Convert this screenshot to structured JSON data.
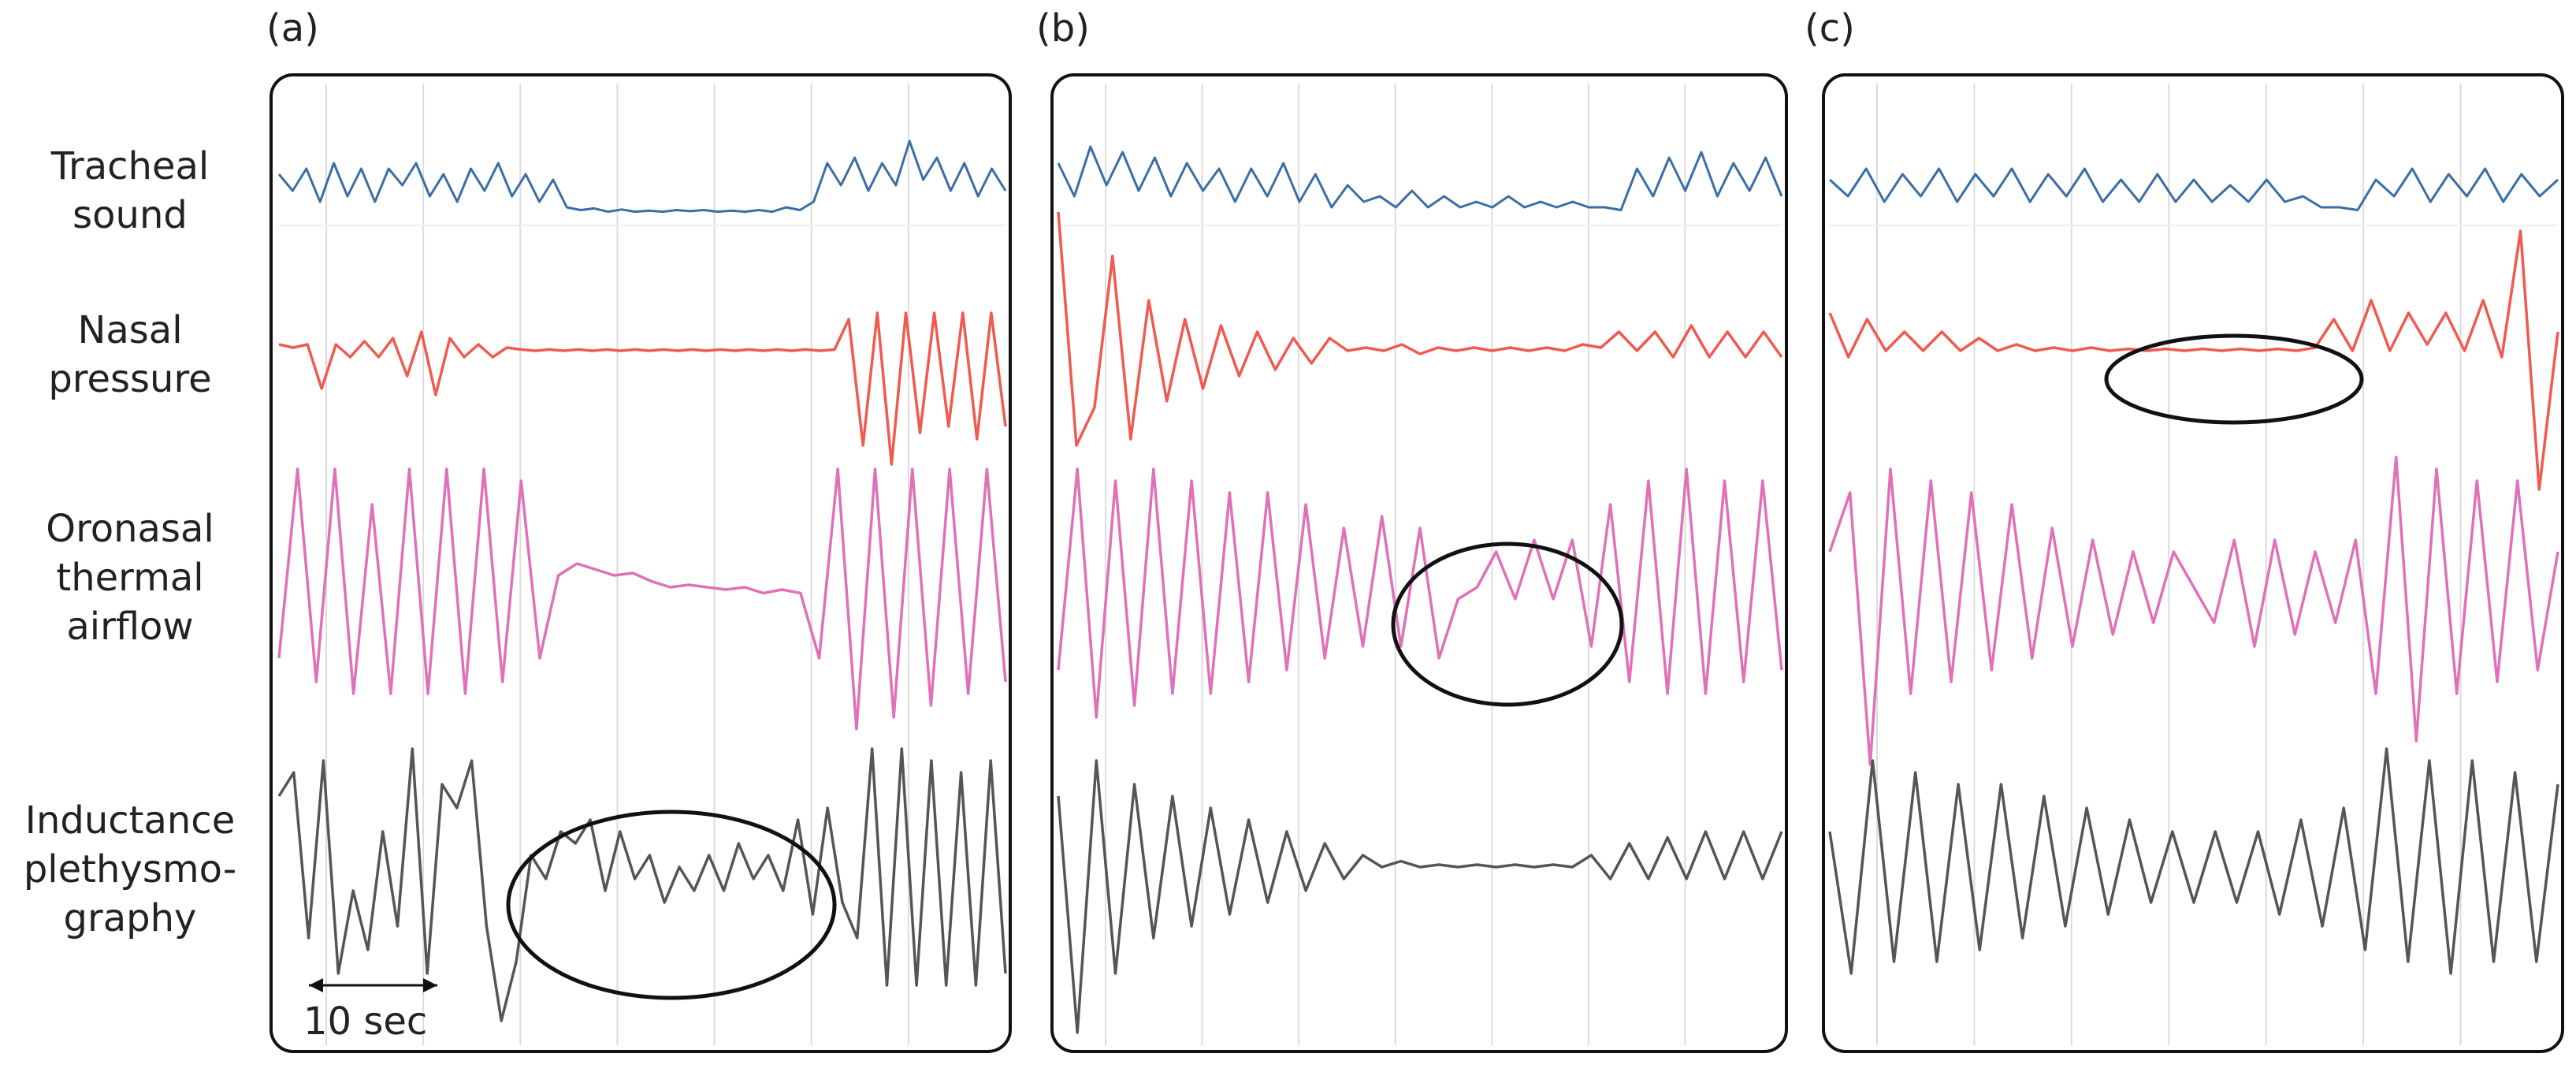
{
  "figure": {
    "row_labels": [
      [
        "Tracheal",
        "sound"
      ],
      [
        "Nasal",
        "pressure"
      ],
      [
        "Oronasal",
        "thermal",
        "airflow"
      ],
      [
        "Inductance",
        "plethysmo-",
        "graphy"
      ]
    ],
    "panels": [
      "(a)",
      "(b)",
      "(c)"
    ],
    "scale_bar_label": "10 sec",
    "colors": {
      "tracheal": "#3a6ea5",
      "nasal": "#f05a4f",
      "thermal": "#e070b8",
      "inductance": "#555555",
      "grid": "#dcdcdc",
      "frame": "#111111"
    }
  },
  "chart_data": [
    {
      "type": "line",
      "panel": "(a)",
      "annotation": "ellipse around reduced inductance plethysmography signal",
      "series": [
        {
          "signal": "tracheal",
          "values": [
            0.7,
            0.4,
            0.8,
            0.2,
            0.9,
            0.3,
            0.8,
            0.2,
            0.8,
            0.5,
            0.9,
            0.3,
            0.7,
            0.2,
            0.8,
            0.4,
            0.9,
            0.3,
            0.7,
            0.2,
            0.6,
            0.1,
            0.05,
            0.08,
            0.02,
            0.06,
            0.02,
            0.04,
            0.02,
            0.05,
            0.03,
            0.05,
            0.02,
            0.04,
            0.02,
            0.05,
            0.02,
            0.1,
            0.05,
            0.2,
            0.9,
            0.5,
            1.0,
            0.4,
            0.9,
            0.5,
            1.3,
            0.6,
            1.0,
            0.4,
            0.9,
            0.3,
            0.8,
            0.4
          ]
        },
        {
          "signal": "nasal",
          "values": [
            0.1,
            0.05,
            0.1,
            -0.6,
            0.1,
            -0.1,
            0.15,
            -0.1,
            0.2,
            -0.4,
            0.3,
            -0.7,
            0.2,
            -0.1,
            0.1,
            -0.1,
            0.05,
            0.02,
            0.0,
            0.02,
            0.0,
            0.02,
            0.0,
            0.02,
            0.0,
            0.02,
            0.0,
            0.02,
            0.0,
            0.02,
            0.0,
            0.02,
            0.0,
            0.02,
            0.0,
            0.02,
            0.0,
            0.02,
            0.0,
            0.02,
            0.5,
            -1.5,
            0.6,
            -1.8,
            0.6,
            -1.3,
            0.6,
            -1.2,
            0.6,
            -1.4,
            0.6,
            -1.2
          ]
        },
        {
          "signal": "thermal",
          "values": [
            -0.6,
            1.0,
            -0.8,
            1.0,
            -0.9,
            0.7,
            -0.9,
            1.0,
            -0.9,
            1.0,
            -0.9,
            1.0,
            -0.8,
            0.9,
            -0.6,
            0.1,
            0.2,
            0.15,
            0.1,
            0.12,
            0.05,
            0.0,
            0.02,
            0.0,
            -0.02,
            0.0,
            -0.05,
            -0.02,
            -0.05,
            -0.6,
            1.0,
            -1.2,
            1.0,
            -1.1,
            1.0,
            -1.0,
            1.0,
            -0.9,
            1.0,
            -0.8
          ]
        },
        {
          "signal": "inductance",
          "values": [
            0.6,
            0.8,
            -0.6,
            0.9,
            -0.9,
            -0.2,
            -0.7,
            0.3,
            -0.5,
            1.0,
            -0.9,
            0.7,
            0.5,
            0.9,
            -0.5,
            -1.3,
            -0.8,
            0.1,
            -0.1,
            0.3,
            0.2,
            0.4,
            -0.2,
            0.3,
            -0.1,
            0.1,
            -0.3,
            0.0,
            -0.2,
            0.1,
            -0.2,
            0.2,
            -0.1,
            0.1,
            -0.2,
            0.4,
            -0.4,
            0.5,
            -0.3,
            -0.6,
            1.0,
            -1.0,
            1.0,
            -1.0,
            0.9,
            -1.0,
            0.8,
            -1.0,
            0.9,
            -0.9
          ]
        }
      ]
    },
    {
      "type": "line",
      "panel": "(b)",
      "annotation": "ellipse around reduced oronasal thermal airflow signal",
      "series": [
        {
          "signal": "tracheal",
          "values": [
            0.9,
            0.3,
            1.2,
            0.5,
            1.1,
            0.4,
            1.0,
            0.3,
            0.9,
            0.4,
            0.8,
            0.2,
            0.8,
            0.3,
            0.9,
            0.2,
            0.7,
            0.1,
            0.5,
            0.2,
            0.3,
            0.1,
            0.4,
            0.1,
            0.3,
            0.1,
            0.2,
            0.1,
            0.3,
            0.1,
            0.2,
            0.1,
            0.2,
            0.1,
            0.1,
            0.05,
            0.8,
            0.3,
            1.0,
            0.4,
            1.1,
            0.3,
            0.9,
            0.4,
            1.0,
            0.3
          ]
        },
        {
          "signal": "nasal",
          "values": [
            2.2,
            -1.5,
            -0.9,
            1.5,
            -1.4,
            0.8,
            -0.8,
            0.5,
            -0.6,
            0.4,
            -0.4,
            0.3,
            -0.3,
            0.2,
            -0.2,
            0.2,
            0.0,
            0.05,
            0.0,
            0.1,
            -0.05,
            0.05,
            0.0,
            0.05,
            0.0,
            0.05,
            0.0,
            0.05,
            0.0,
            0.1,
            0.05,
            0.3,
            0.0,
            0.3,
            -0.1,
            0.4,
            -0.1,
            0.3,
            -0.1,
            0.3,
            -0.1
          ]
        },
        {
          "signal": "thermal",
          "values": [
            -0.7,
            1.0,
            -1.1,
            0.9,
            -1.0,
            1.0,
            -0.9,
            0.9,
            -0.9,
            0.8,
            -0.8,
            0.8,
            -0.7,
            0.7,
            -0.6,
            0.5,
            -0.5,
            0.6,
            -0.5,
            0.5,
            -0.6,
            -0.1,
            0.0,
            0.3,
            -0.1,
            0.4,
            -0.1,
            0.4,
            -0.5,
            0.7,
            -0.8,
            0.9,
            -0.9,
            1.0,
            -0.9,
            0.9,
            -0.8,
            0.9,
            -0.7
          ]
        },
        {
          "signal": "inductance",
          "values": [
            0.6,
            -1.4,
            0.9,
            -0.9,
            0.7,
            -0.6,
            0.6,
            -0.5,
            0.5,
            -0.4,
            0.4,
            -0.3,
            0.3,
            -0.2,
            0.2,
            -0.1,
            0.1,
            0.0,
            0.05,
            0.0,
            0.02,
            0.0,
            0.02,
            0.0,
            0.02,
            0.0,
            0.02,
            0.0,
            0.1,
            -0.1,
            0.2,
            -0.1,
            0.25,
            -0.1,
            0.3,
            -0.1,
            0.3,
            -0.1,
            0.3
          ]
        }
      ]
    },
    {
      "type": "line",
      "panel": "(c)",
      "annotation": "ellipse around flat nasal pressure segment",
      "series": [
        {
          "signal": "tracheal",
          "values": [
            0.6,
            0.3,
            0.8,
            0.2,
            0.7,
            0.3,
            0.8,
            0.2,
            0.7,
            0.3,
            0.8,
            0.2,
            0.7,
            0.3,
            0.8,
            0.2,
            0.6,
            0.2,
            0.7,
            0.2,
            0.6,
            0.2,
            0.5,
            0.2,
            0.6,
            0.2,
            0.3,
            0.1,
            0.1,
            0.05,
            0.6,
            0.3,
            0.8,
            0.2,
            0.7,
            0.3,
            0.8,
            0.2,
            0.7,
            0.3,
            0.6
          ]
        },
        {
          "signal": "nasal",
          "values": [
            0.6,
            -0.1,
            0.5,
            0.0,
            0.3,
            0.0,
            0.3,
            0.0,
            0.2,
            0.0,
            0.1,
            0.0,
            0.05,
            0.0,
            0.05,
            0.0,
            0.03,
            0.0,
            0.03,
            0.0,
            0.03,
            0.0,
            0.03,
            0.0,
            0.03,
            0.0,
            0.05,
            0.5,
            0.0,
            0.8,
            0.0,
            0.6,
            0.1,
            0.6,
            0.0,
            0.8,
            -0.1,
            1.9,
            -2.2,
            0.3
          ]
        },
        {
          "signal": "thermal",
          "values": [
            0.3,
            0.8,
            -1.5,
            1.0,
            -0.9,
            0.9,
            -0.8,
            0.8,
            -0.7,
            0.7,
            -0.6,
            0.5,
            -0.5,
            0.4,
            -0.4,
            0.3,
            -0.3,
            0.3,
            0.0,
            -0.3,
            0.4,
            -0.5,
            0.4,
            -0.4,
            0.3,
            -0.3,
            0.4,
            -0.9,
            1.1,
            -1.3,
            1.0,
            -0.9,
            0.9,
            -0.8,
            0.9,
            -0.7,
            0.3
          ]
        },
        {
          "signal": "inductance",
          "values": [
            0.3,
            -0.9,
            0.9,
            -0.8,
            0.8,
            -0.8,
            0.7,
            -0.7,
            0.7,
            -0.6,
            0.6,
            -0.5,
            0.5,
            -0.4,
            0.4,
            -0.3,
            0.3,
            -0.3,
            0.3,
            -0.3,
            0.3,
            -0.4,
            0.4,
            -0.5,
            0.5,
            -0.7,
            1.0,
            -0.8,
            0.9,
            -0.9,
            0.9,
            -0.8,
            0.8,
            -0.8,
            0.7
          ]
        }
      ]
    }
  ]
}
